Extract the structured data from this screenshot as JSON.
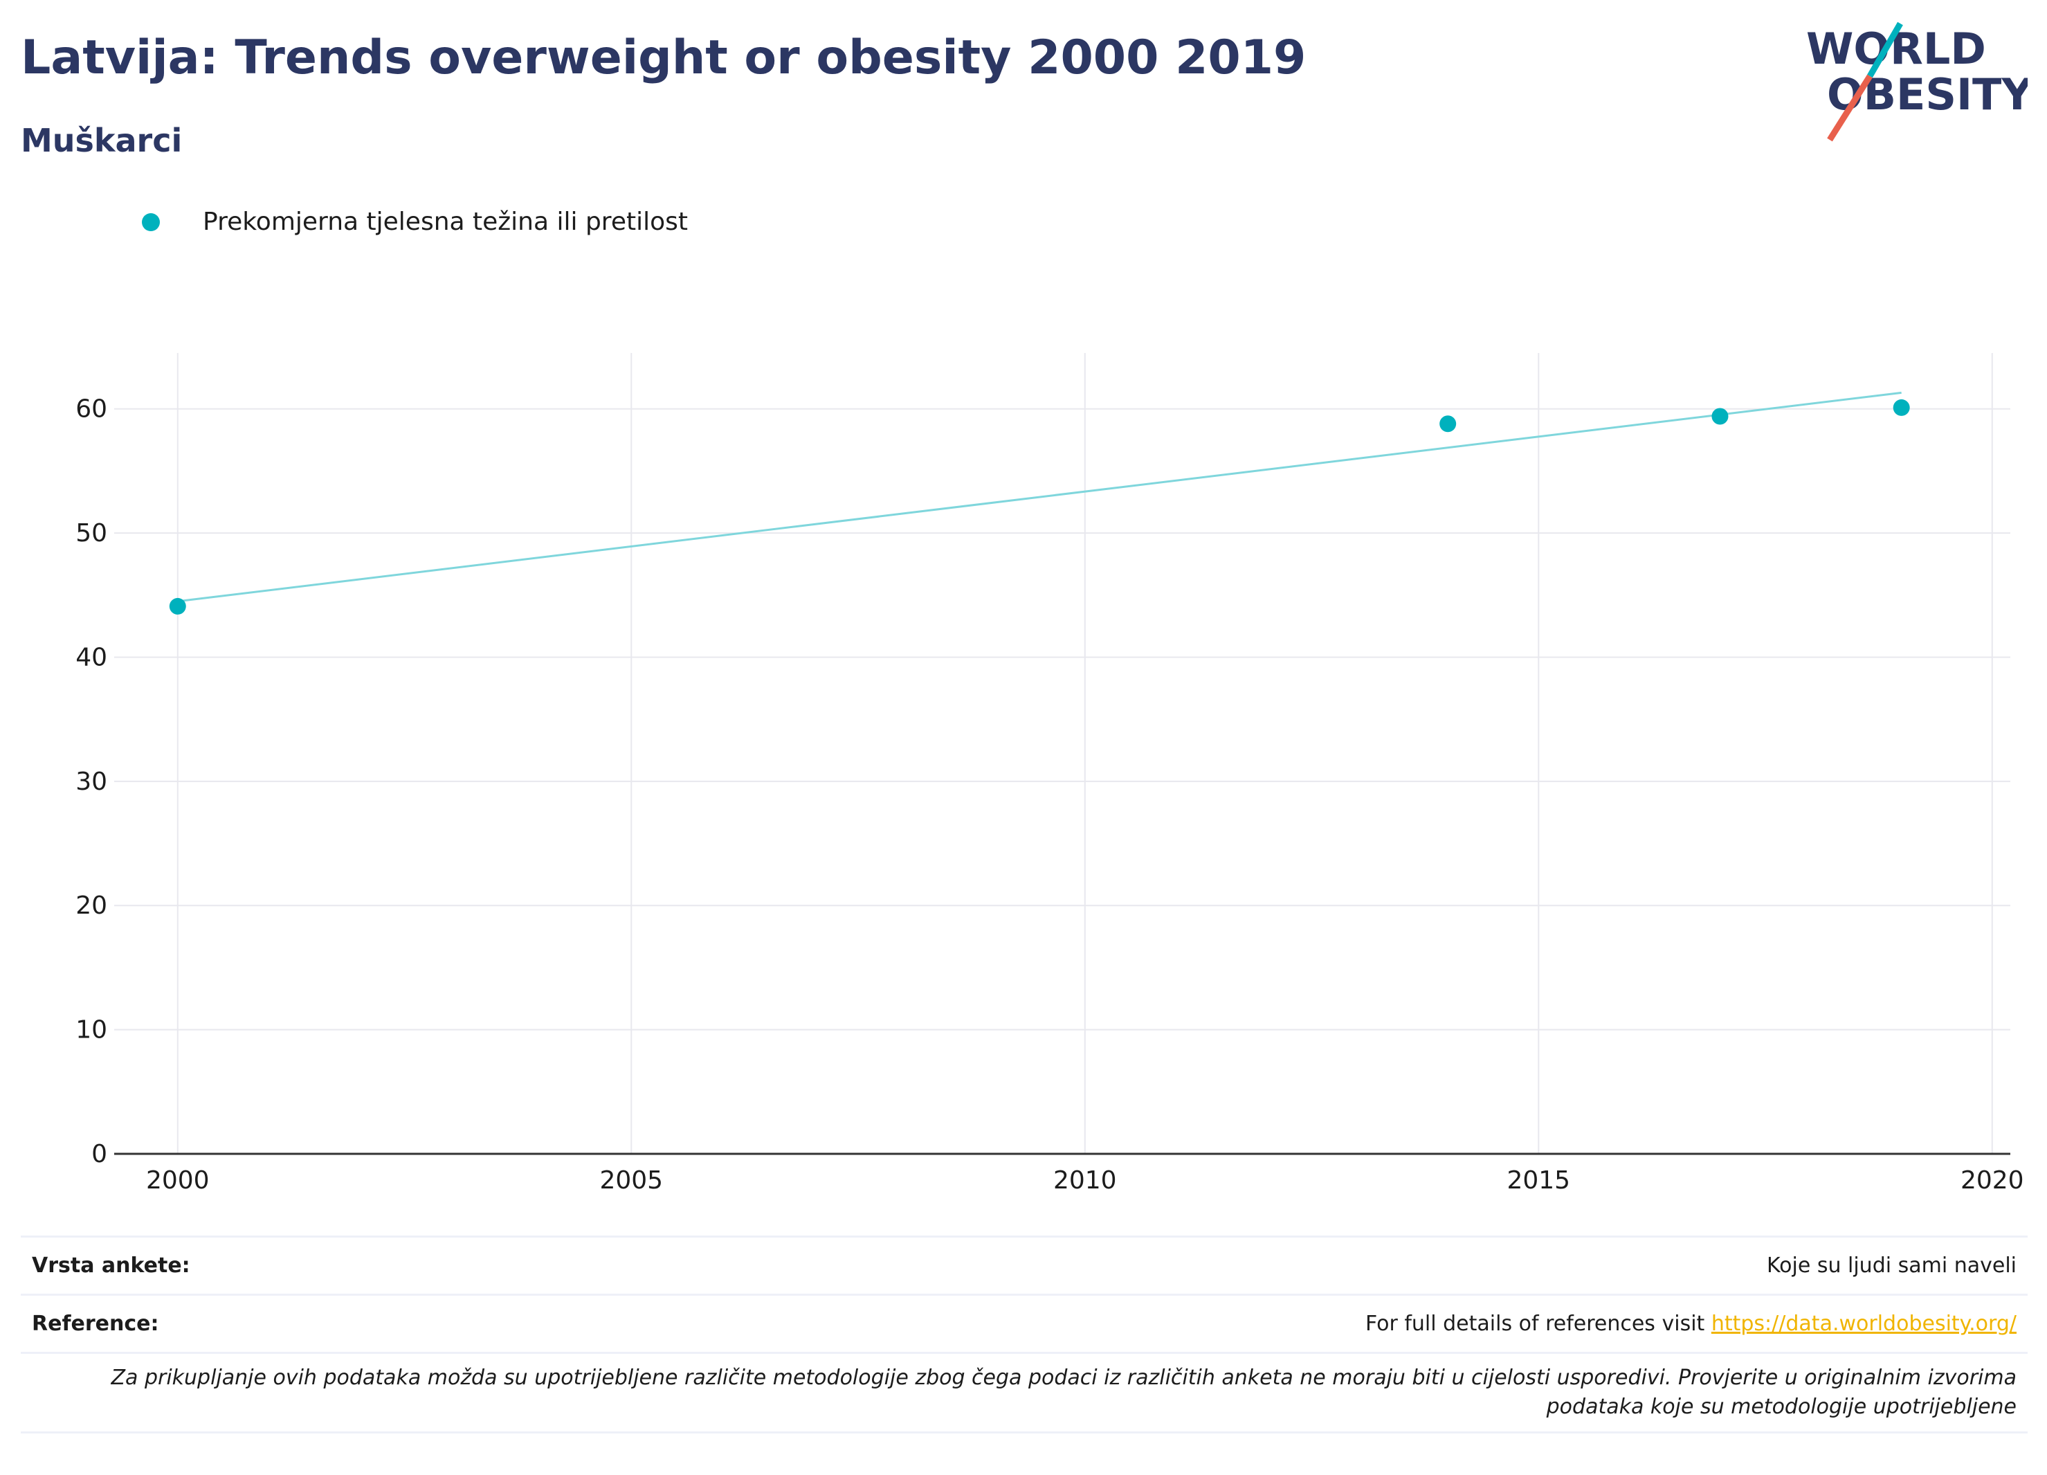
{
  "header": {
    "title": "Latvija: Trends overweight or obesity 2000 2019",
    "subtitle": "Muškarci"
  },
  "logo": {
    "line1": "WORLD",
    "line2": "OBESITY"
  },
  "colors": {
    "accent": "#00b1bd",
    "trend": "#7fd6dc",
    "heading": "#2c3763",
    "link": "#f0b400",
    "logo_red": "#e8604c"
  },
  "chart_data": {
    "type": "scatter",
    "series": [
      {
        "name": "Prekomjerna tjelesna težina ili pretilost",
        "x": [
          2000,
          2014,
          2017,
          2019
        ],
        "values": [
          44.1,
          58.8,
          59.4,
          60.1
        ]
      }
    ],
    "trendline": {
      "x": [
        2000,
        2019
      ],
      "values": [
        44.5,
        61.3
      ]
    },
    "xlim": [
      1999.3,
      2020.2
    ],
    "ylim": [
      0,
      64.5
    ],
    "x_ticks": [
      2000,
      2005,
      2010,
      2015,
      2020
    ],
    "y_ticks": [
      0,
      10,
      20,
      30,
      40,
      50,
      60
    ],
    "grid": true,
    "legend_position": "top-left",
    "xlabel": "",
    "ylabel": ""
  },
  "info": {
    "survey_label": "Vrsta ankete:",
    "survey_value": "Koje su ljudi sami naveli",
    "reference_label": "Reference:",
    "reference_text": "For full details of references visit ",
    "reference_link": "https://data.worldobesity.org/",
    "note": "Za prikupljanje ovih podataka možda su upotrijebljene različite metodologije zbog čega podaci iz različitih anketa ne moraju biti u cijelosti usporedivi. Provjerite u originalnim izvorima podataka koje su metodologije upotrijebljene"
  }
}
